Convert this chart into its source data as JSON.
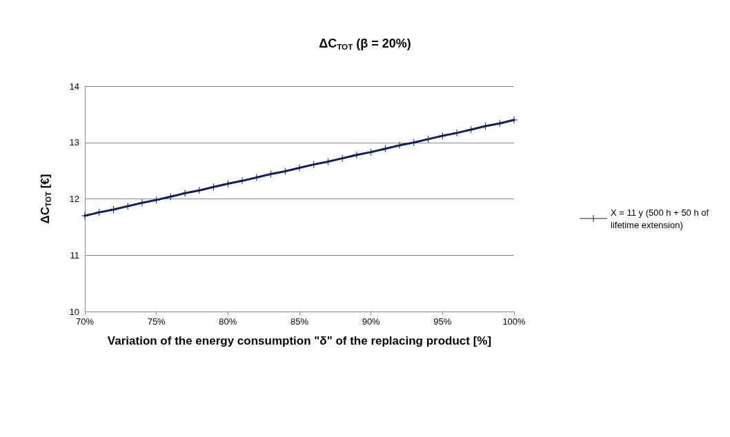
{
  "chart_data": {
    "type": "line",
    "title": "ΔC$_{TOT}$ (β = 20%)",
    "xlabel": "Variation of the energy consumption \"δ\" of the replacing product [%]",
    "ylabel": "ΔC$_{TOT}$ [€]",
    "x": [
      70,
      71,
      72,
      73,
      74,
      75,
      76,
      77,
      78,
      79,
      80,
      81,
      82,
      83,
      84,
      85,
      86,
      87,
      88,
      89,
      90,
      91,
      92,
      93,
      94,
      95,
      96,
      97,
      98,
      99,
      100
    ],
    "series": [
      {
        "name": "X = 11 y (500 h + 50 h of lifetime extension)",
        "color": "#0d1f5e",
        "values": [
          11.7,
          11.76,
          11.81,
          11.87,
          11.93,
          11.98,
          12.04,
          12.1,
          12.15,
          12.21,
          12.27,
          12.32,
          12.38,
          12.44,
          12.49,
          12.55,
          12.61,
          12.66,
          12.72,
          12.78,
          12.83,
          12.89,
          12.95,
          13.0,
          13.06,
          13.12,
          13.17,
          13.23,
          13.29,
          13.34,
          13.4
        ]
      }
    ],
    "xlim": [
      70,
      100
    ],
    "xticks": [
      {
        "value": 70,
        "label": "70%"
      },
      {
        "value": 75,
        "label": "75%"
      },
      {
        "value": 80,
        "label": "80%"
      },
      {
        "value": 85,
        "label": "85%"
      },
      {
        "value": 90,
        "label": "90%"
      },
      {
        "value": 95,
        "label": "95%"
      },
      {
        "value": 100,
        "label": "100%"
      }
    ],
    "ylim": [
      10,
      14
    ],
    "yticks": [
      10,
      11,
      12,
      13,
      14
    ],
    "grid": "y",
    "legend": "right",
    "marker": "cross",
    "line_style": "solid"
  }
}
